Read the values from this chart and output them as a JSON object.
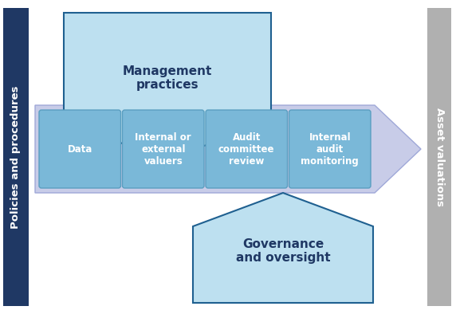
{
  "bg_color": "#ffffff",
  "left_bar_color": "#1f3864",
  "left_bar_text": "Policies and procedures",
  "left_bar_text_color": "#ffffff",
  "right_bar_color": "#b0b0b0",
  "right_bar_text": "Asset valuations",
  "right_bar_text_color": "#ffffff",
  "top_pentagon_color": "#bde0f0",
  "top_pentagon_border": "#1f6090",
  "top_pentagon_text": "Management\npractices",
  "top_pentagon_text_color": "#1f3864",
  "bottom_pentagon_color": "#bde0f0",
  "bottom_pentagon_border": "#1f6090",
  "bottom_pentagon_text": "Governance\nand oversight",
  "bottom_pentagon_text_color": "#1f3864",
  "arrow_color": "#c8cce8",
  "arrow_border": "#9fa8d8",
  "box_color": "#7ab8d8",
  "box_border": "#5a9ec0",
  "box_text_color": "#ffffff",
  "boxes": [
    "Data",
    "Internal or\nexternal\nvaluers",
    "Audit\ncommittee\nreview",
    "Internal\naudit\nmonitoring"
  ],
  "figure_bg": "#ffffff"
}
